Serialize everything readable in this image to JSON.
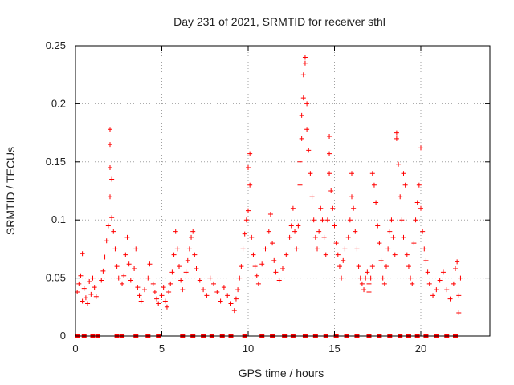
{
  "chart_data": {
    "type": "scatter",
    "title": "Day 231 of 2021, SRMTID for receiver sthl",
    "xlabel": "GPS time / hours",
    "ylabel": "SRMTID / TECUs",
    "xlim": [
      0,
      24
    ],
    "ylim": [
      0,
      0.25
    ],
    "xticks": [
      0,
      5,
      10,
      15,
      20
    ],
    "yticks": [
      0,
      0.05,
      0.1,
      0.15,
      0.2,
      0.25
    ],
    "xtick_labels": [
      "0",
      "5",
      "10",
      "15",
      "20"
    ],
    "ytick_labels": [
      "0",
      "0.05",
      "0.1",
      "0.15",
      "0.2",
      "0.25"
    ],
    "grid": true,
    "marker": "+",
    "color": "#ff0000",
    "series": [
      {
        "name": "sthl",
        "points": [
          [
            0.1,
            0.038
          ],
          [
            0.2,
            0.045
          ],
          [
            0.3,
            0.052
          ],
          [
            0.4,
            0.071
          ],
          [
            0.4,
            0.03
          ],
          [
            0.5,
            0.041
          ],
          [
            0.6,
            0.033
          ],
          [
            0.7,
            0.028
          ],
          [
            0.8,
            0.047
          ],
          [
            0.9,
            0.036
          ],
          [
            1.0,
            0.05
          ],
          [
            1.1,
            0.042
          ],
          [
            1.2,
            0.034
          ],
          [
            1.5,
            0.048
          ],
          [
            1.6,
            0.056
          ],
          [
            1.7,
            0.068
          ],
          [
            1.8,
            0.082
          ],
          [
            1.9,
            0.095
          ],
          [
            2.0,
            0.12
          ],
          [
            2.0,
            0.145
          ],
          [
            2.0,
            0.165
          ],
          [
            2.0,
            0.178
          ],
          [
            2.1,
            0.135
          ],
          [
            2.1,
            0.102
          ],
          [
            2.2,
            0.09
          ],
          [
            2.3,
            0.075
          ],
          [
            2.4,
            0.06
          ],
          [
            2.5,
            0.05
          ],
          [
            2.7,
            0.045
          ],
          [
            2.8,
            0.052
          ],
          [
            2.9,
            0.07
          ],
          [
            3.0,
            0.085
          ],
          [
            3.1,
            0.062
          ],
          [
            3.2,
            0.048
          ],
          [
            3.4,
            0.058
          ],
          [
            3.5,
            0.075
          ],
          [
            3.6,
            0.042
          ],
          [
            3.7,
            0.035
          ],
          [
            3.8,
            0.03
          ],
          [
            4.0,
            0.04
          ],
          [
            4.2,
            0.05
          ],
          [
            4.3,
            0.062
          ],
          [
            4.5,
            0.045
          ],
          [
            4.6,
            0.038
          ],
          [
            4.7,
            0.032
          ],
          [
            4.8,
            0.028
          ],
          [
            5.0,
            0.035
          ],
          [
            5.1,
            0.042
          ],
          [
            5.2,
            0.03
          ],
          [
            5.3,
            0.025
          ],
          [
            5.4,
            0.038
          ],
          [
            5.5,
            0.045
          ],
          [
            5.6,
            0.055
          ],
          [
            5.7,
            0.07
          ],
          [
            5.8,
            0.09
          ],
          [
            5.9,
            0.075
          ],
          [
            6.0,
            0.06
          ],
          [
            6.1,
            0.048
          ],
          [
            6.2,
            0.04
          ],
          [
            6.4,
            0.055
          ],
          [
            6.5,
            0.065
          ],
          [
            6.6,
            0.075
          ],
          [
            6.7,
            0.085
          ],
          [
            6.8,
            0.09
          ],
          [
            6.9,
            0.07
          ],
          [
            7.0,
            0.058
          ],
          [
            7.2,
            0.048
          ],
          [
            7.4,
            0.04
          ],
          [
            7.6,
            0.035
          ],
          [
            7.8,
            0.05
          ],
          [
            8.0,
            0.045
          ],
          [
            8.2,
            0.038
          ],
          [
            8.4,
            0.03
          ],
          [
            8.6,
            0.042
          ],
          [
            8.8,
            0.035
          ],
          [
            9.0,
            0.028
          ],
          [
            9.2,
            0.022
          ],
          [
            9.3,
            0.032
          ],
          [
            9.4,
            0.04
          ],
          [
            9.5,
            0.05
          ],
          [
            9.6,
            0.06
          ],
          [
            9.7,
            0.075
          ],
          [
            9.8,
            0.088
          ],
          [
            9.9,
            0.1
          ],
          [
            10.0,
            0.108
          ],
          [
            10.0,
            0.145
          ],
          [
            10.1,
            0.157
          ],
          [
            10.1,
            0.13
          ],
          [
            10.2,
            0.085
          ],
          [
            10.3,
            0.07
          ],
          [
            10.4,
            0.06
          ],
          [
            10.5,
            0.052
          ],
          [
            10.6,
            0.045
          ],
          [
            10.8,
            0.062
          ],
          [
            11.0,
            0.075
          ],
          [
            11.2,
            0.09
          ],
          [
            11.3,
            0.105
          ],
          [
            11.4,
            0.08
          ],
          [
            11.5,
            0.065
          ],
          [
            11.6,
            0.055
          ],
          [
            11.8,
            0.048
          ],
          [
            12.0,
            0.058
          ],
          [
            12.2,
            0.07
          ],
          [
            12.4,
            0.085
          ],
          [
            12.5,
            0.095
          ],
          [
            12.6,
            0.11
          ],
          [
            12.7,
            0.09
          ],
          [
            12.8,
            0.075
          ],
          [
            12.9,
            0.095
          ],
          [
            13.0,
            0.13
          ],
          [
            13.0,
            0.15
          ],
          [
            13.1,
            0.17
          ],
          [
            13.1,
            0.19
          ],
          [
            13.2,
            0.205
          ],
          [
            13.2,
            0.225
          ],
          [
            13.3,
            0.235
          ],
          [
            13.3,
            0.24
          ],
          [
            13.4,
            0.2
          ],
          [
            13.4,
            0.178
          ],
          [
            13.5,
            0.16
          ],
          [
            13.6,
            0.14
          ],
          [
            13.7,
            0.12
          ],
          [
            13.8,
            0.1
          ],
          [
            13.9,
            0.085
          ],
          [
            14.0,
            0.075
          ],
          [
            14.1,
            0.09
          ],
          [
            14.2,
            0.11
          ],
          [
            14.3,
            0.1
          ],
          [
            14.4,
            0.085
          ],
          [
            14.5,
            0.07
          ],
          [
            14.6,
            0.1
          ],
          [
            14.7,
            0.14
          ],
          [
            14.7,
            0.157
          ],
          [
            14.7,
            0.172
          ],
          [
            14.8,
            0.125
          ],
          [
            14.9,
            0.11
          ],
          [
            15.0,
            0.095
          ],
          [
            15.1,
            0.08
          ],
          [
            15.2,
            0.07
          ],
          [
            15.3,
            0.06
          ],
          [
            15.4,
            0.05
          ],
          [
            15.5,
            0.065
          ],
          [
            15.6,
            0.075
          ],
          [
            15.8,
            0.085
          ],
          [
            15.9,
            0.1
          ],
          [
            16.0,
            0.12
          ],
          [
            16.0,
            0.14
          ],
          [
            16.1,
            0.11
          ],
          [
            16.2,
            0.09
          ],
          [
            16.3,
            0.075
          ],
          [
            16.4,
            0.06
          ],
          [
            16.5,
            0.05
          ],
          [
            16.6,
            0.045
          ],
          [
            16.7,
            0.04
          ],
          [
            16.8,
            0.05
          ],
          [
            16.9,
            0.055
          ],
          [
            17.0,
            0.045
          ],
          [
            17.0,
            0.038
          ],
          [
            17.1,
            0.05
          ],
          [
            17.2,
            0.06
          ],
          [
            17.2,
            0.14
          ],
          [
            17.3,
            0.13
          ],
          [
            17.4,
            0.115
          ],
          [
            17.5,
            0.095
          ],
          [
            17.6,
            0.08
          ],
          [
            17.7,
            0.065
          ],
          [
            17.8,
            0.05
          ],
          [
            17.9,
            0.045
          ],
          [
            18.0,
            0.06
          ],
          [
            18.1,
            0.075
          ],
          [
            18.2,
            0.09
          ],
          [
            18.3,
            0.1
          ],
          [
            18.4,
            0.085
          ],
          [
            18.5,
            0.07
          ],
          [
            18.6,
            0.17
          ],
          [
            18.6,
            0.175
          ],
          [
            18.7,
            0.148
          ],
          [
            18.8,
            0.12
          ],
          [
            18.9,
            0.1
          ],
          [
            19.0,
            0.085
          ],
          [
            19.0,
            0.14
          ],
          [
            19.1,
            0.13
          ],
          [
            19.2,
            0.07
          ],
          [
            19.3,
            0.06
          ],
          [
            19.4,
            0.05
          ],
          [
            19.5,
            0.045
          ],
          [
            19.6,
            0.08
          ],
          [
            19.7,
            0.1
          ],
          [
            19.8,
            0.115
          ],
          [
            19.9,
            0.13
          ],
          [
            20.0,
            0.162
          ],
          [
            20.0,
            0.11
          ],
          [
            20.1,
            0.09
          ],
          [
            20.2,
            0.075
          ],
          [
            20.3,
            0.065
          ],
          [
            20.4,
            0.055
          ],
          [
            20.5,
            0.045
          ],
          [
            20.7,
            0.035
          ],
          [
            20.9,
            0.04
          ],
          [
            21.1,
            0.048
          ],
          [
            21.3,
            0.055
          ],
          [
            21.5,
            0.04
          ],
          [
            21.7,
            0.032
          ],
          [
            21.9,
            0.045
          ],
          [
            22.0,
            0.058
          ],
          [
            22.1,
            0.064
          ],
          [
            22.2,
            0.035
          ],
          [
            22.2,
            0.02
          ],
          [
            22.3,
            0.05
          ]
        ]
      }
    ],
    "gap_markers": [
      0.1,
      0.5,
      1.0,
      1.3,
      2.4,
      2.7,
      3.5,
      4.2,
      4.8,
      6.2,
      6.8,
      7.4,
      7.9,
      8.5,
      9.0,
      9.8,
      10.8,
      11.4,
      12.1,
      12.6,
      13.3,
      13.9,
      14.5,
      15.1,
      15.7,
      16.3,
      17.0,
      17.6,
      18.2,
      18.8,
      19.3,
      19.8,
      20.3,
      20.9,
      21.5,
      22.0
    ]
  }
}
